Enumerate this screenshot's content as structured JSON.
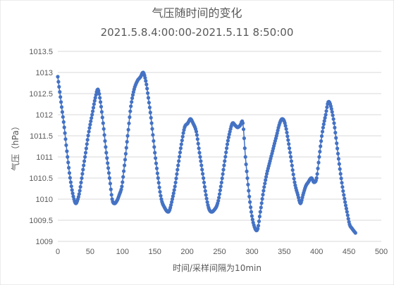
{
  "chart_data": {
    "type": "scatter",
    "title": "气压随时间的变化",
    "subtitle": "2021.5.8.4:00:00-2021.5.11 8:50:00",
    "xlabel": "时间/采样间隔为10min",
    "ylabel": "气压（hPa）",
    "xlim": [
      0,
      500
    ],
    "ylim": [
      1009,
      1013.5
    ],
    "xticks": [
      "0",
      "50",
      "100",
      "150",
      "200",
      "250",
      "300",
      "350",
      "400",
      "450",
      "500"
    ],
    "yticks": [
      "1009",
      "1009.5",
      "1010",
      "1010.5",
      "1011",
      "1011.5",
      "1012",
      "1012.5",
      "1013",
      "1013.5"
    ],
    "grid": "horizontal",
    "series": [
      {
        "color": "#4472C4",
        "style": "line-with-markers",
        "points": [
          [
            0,
            1012.9
          ],
          [
            5,
            1012.3
          ],
          [
            10,
            1011.7
          ],
          [
            15,
            1011.0
          ],
          [
            20,
            1010.4
          ],
          [
            25,
            1010.0
          ],
          [
            28,
            1009.9
          ],
          [
            31,
            1010.0
          ],
          [
            34,
            1010.2
          ],
          [
            38,
            1010.6
          ],
          [
            43,
            1011.1
          ],
          [
            48,
            1011.6
          ],
          [
            53,
            1012.0
          ],
          [
            58,
            1012.4
          ],
          [
            62,
            1012.6
          ],
          [
            66,
            1012.3
          ],
          [
            70,
            1011.8
          ],
          [
            75,
            1011.1
          ],
          [
            80,
            1010.5
          ],
          [
            84,
            1010.0
          ],
          [
            87,
            1009.9
          ],
          [
            91,
            1009.95
          ],
          [
            95,
            1010.1
          ],
          [
            99,
            1010.3
          ],
          [
            103,
            1010.8
          ],
          [
            108,
            1011.5
          ],
          [
            113,
            1012.2
          ],
          [
            118,
            1012.6
          ],
          [
            123,
            1012.8
          ],
          [
            128,
            1012.9
          ],
          [
            132,
            1013.0
          ],
          [
            136,
            1012.8
          ],
          [
            140,
            1012.4
          ],
          [
            145,
            1011.8
          ],
          [
            150,
            1011.1
          ],
          [
            155,
            1010.5
          ],
          [
            160,
            1010.0
          ],
          [
            165,
            1009.8
          ],
          [
            170,
            1009.7
          ],
          [
            173,
            1009.75
          ],
          [
            177,
            1010.0
          ],
          [
            181,
            1010.3
          ],
          [
            186,
            1010.8
          ],
          [
            191,
            1011.3
          ],
          [
            196,
            1011.7
          ],
          [
            201,
            1011.8
          ],
          [
            205,
            1011.9
          ],
          [
            209,
            1011.8
          ],
          [
            214,
            1011.6
          ],
          [
            219,
            1011.1
          ],
          [
            224,
            1010.6
          ],
          [
            229,
            1010.1
          ],
          [
            233,
            1009.8
          ],
          [
            237,
            1009.7
          ],
          [
            242,
            1009.75
          ],
          [
            247,
            1009.9
          ],
          [
            252,
            1010.3
          ],
          [
            257,
            1010.8
          ],
          [
            262,
            1011.3
          ],
          [
            266,
            1011.6
          ],
          [
            270,
            1011.8
          ],
          [
            274,
            1011.75
          ],
          [
            278,
            1011.7
          ],
          [
            282,
            1011.75
          ],
          [
            286,
            1011.8
          ],
          [
            290,
            1011.0
          ],
          [
            295,
            1010.2
          ],
          [
            300,
            1009.6
          ],
          [
            305,
            1009.3
          ],
          [
            309,
            1009.3
          ],
          [
            313,
            1009.7
          ],
          [
            318,
            1010.2
          ],
          [
            323,
            1010.6
          ],
          [
            328,
            1010.9
          ],
          [
            333,
            1011.2
          ],
          [
            338,
            1011.5
          ],
          [
            343,
            1011.8
          ],
          [
            347,
            1011.9
          ],
          [
            351,
            1011.8
          ],
          [
            356,
            1011.4
          ],
          [
            361,
            1010.9
          ],
          [
            366,
            1010.4
          ],
          [
            371,
            1010.1
          ],
          [
            375,
            1009.9
          ],
          [
            379,
            1010.1
          ],
          [
            383,
            1010.3
          ],
          [
            387,
            1010.4
          ],
          [
            392,
            1010.5
          ],
          [
            396,
            1010.4
          ],
          [
            400,
            1010.5
          ],
          [
            404,
            1011.0
          ],
          [
            409,
            1011.6
          ],
          [
            414,
            1012.0
          ],
          [
            418,
            1012.3
          ],
          [
            422,
            1012.2
          ],
          [
            427,
            1011.8
          ],
          [
            432,
            1011.2
          ],
          [
            437,
            1010.6
          ],
          [
            442,
            1010.1
          ],
          [
            447,
            1009.7
          ],
          [
            451,
            1009.4
          ],
          [
            455,
            1009.3
          ],
          [
            460,
            1009.2
          ]
        ]
      }
    ]
  }
}
